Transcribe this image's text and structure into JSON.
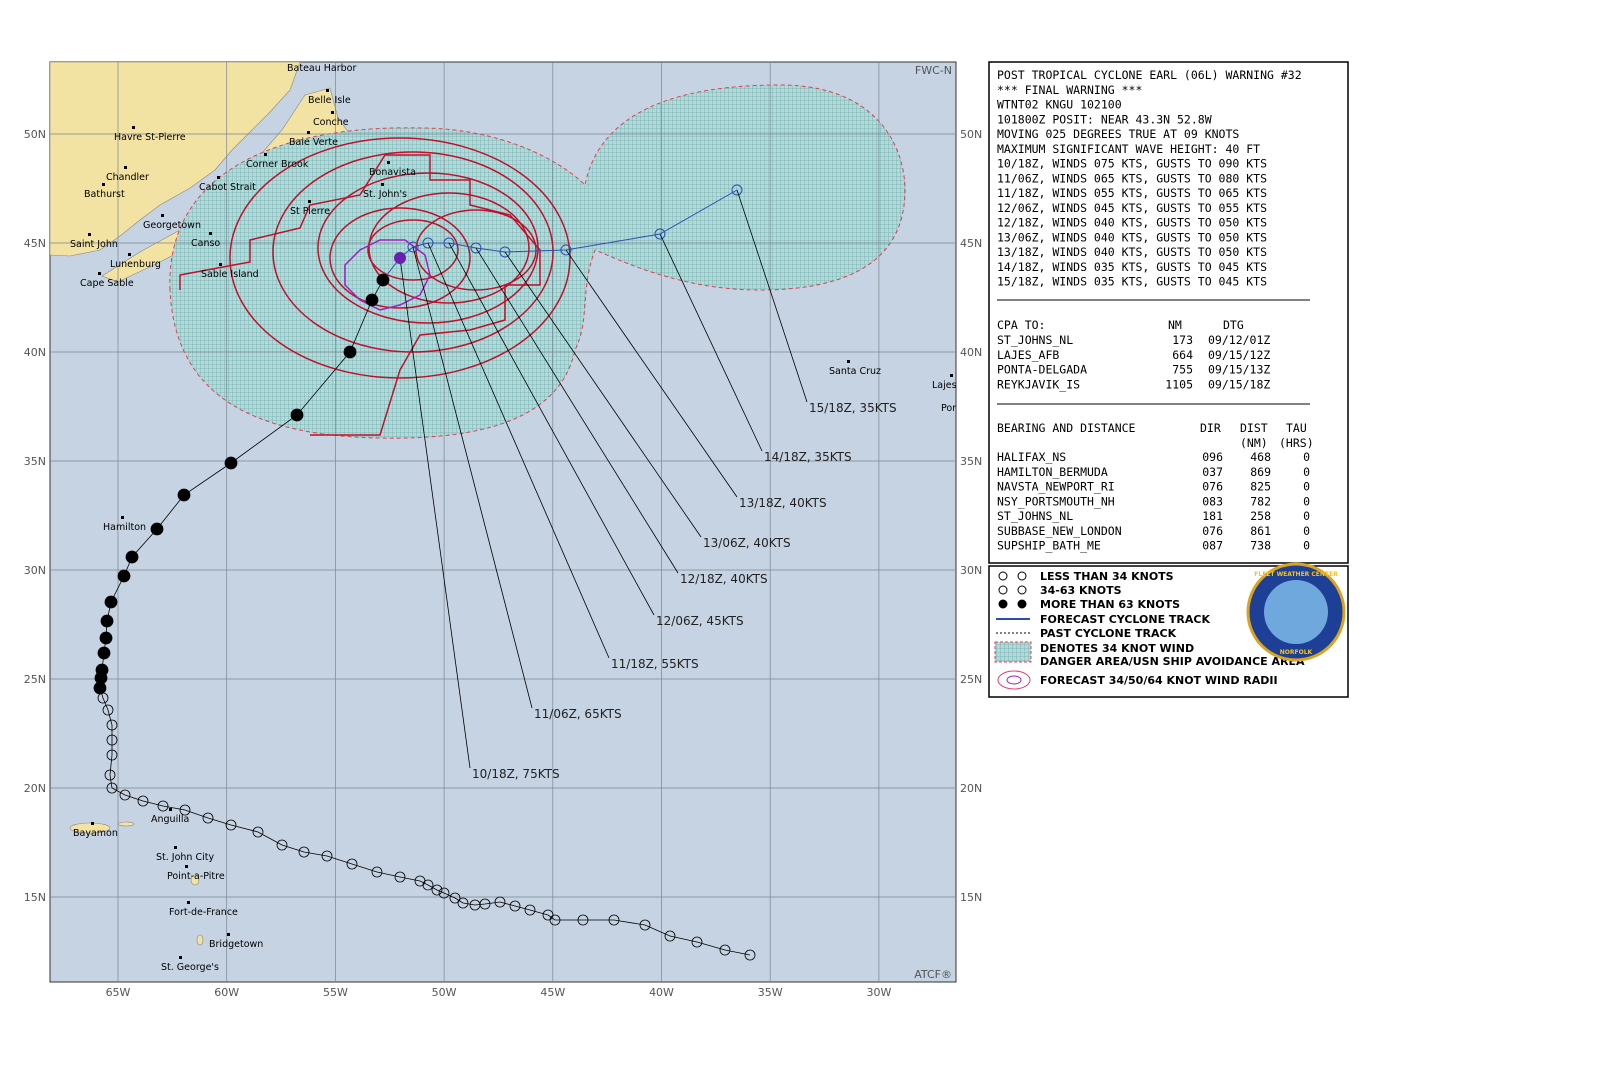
{
  "map": {
    "corner_labels": {
      "top_right": "FWC-N",
      "bottom_right": "ATCF®"
    },
    "lon_labels": [
      "65W",
      "60W",
      "55W",
      "50W",
      "45W",
      "40W",
      "35W",
      "30W"
    ],
    "lat_labels": [
      "50N",
      "45N",
      "40N",
      "35N",
      "30N",
      "25N",
      "20N",
      "15N"
    ],
    "places": [
      "Bateau Harbor",
      "Belle Isle",
      "Conche",
      "Baie Verte",
      "Havre St-Pierre",
      "Corner Brook",
      "Chandler",
      "Bathurst",
      "Cabot Strait",
      "Bonavista",
      "St. John's",
      "St Pierre",
      "Georgetown",
      "Canso",
      "Saint John",
      "Lunenburg",
      "Sable Island",
      "Cape Sable",
      "Santa Cruz",
      "Lajes",
      "Por",
      "Hamilton",
      "Bayamon",
      "Anguilla",
      "St. John City",
      "Point-a-Pitre",
      "Fort-de-France",
      "Bridgetown",
      "St. George's"
    ],
    "forecast_labels": [
      "10/18Z, 75KTS",
      "11/06Z, 65KTS",
      "11/18Z, 55KTS",
      "12/06Z, 45KTS",
      "12/18Z, 40KTS",
      "13/06Z, 40KTS",
      "13/18Z, 40KTS",
      "14/18Z, 35KTS",
      "15/18Z, 35KTS"
    ]
  },
  "warning": {
    "header": [
      "POST TROPICAL CYCLONE EARL (06L) WARNING #32",
      "*** FINAL WARNING ***",
      "WTNT02 KNGU 102100",
      "101800Z POSIT: NEAR 43.3N 52.8W",
      "MOVING 025 DEGREES TRUE AT 09 KNOTS",
      "MAXIMUM SIGNIFICANT WAVE HEIGHT: 40 FT",
      "10/18Z, WINDS 075 KTS, GUSTS TO 090 KTS",
      "11/06Z, WINDS 065 KTS, GUSTS TO 080 KTS",
      "11/18Z, WINDS 055 KTS, GUSTS TO 065 KTS",
      "12/06Z, WINDS 045 KTS, GUSTS TO 055 KTS",
      "12/18Z, WINDS 040 KTS, GUSTS TO 050 KTS",
      "13/06Z, WINDS 040 KTS, GUSTS TO 050 KTS",
      "13/18Z, WINDS 040 KTS, GUSTS TO 050 KTS",
      "14/18Z, WINDS 035 KTS, GUSTS TO 045 KTS",
      "15/18Z, WINDS 035 KTS, GUSTS TO 045 KTS"
    ],
    "cpa": {
      "title": "CPA TO:",
      "columns": [
        "NM",
        "DTG"
      ],
      "rows": [
        [
          "ST_JOHNS_NL",
          "173",
          "09/12/01Z"
        ],
        [
          "LAJES_AFB",
          "664",
          "09/15/12Z"
        ],
        [
          "PONTA-DELGADA",
          "755",
          "09/15/13Z"
        ],
        [
          "REYKJAVIK_IS",
          "1105",
          "09/15/18Z"
        ]
      ]
    },
    "bearing": {
      "title": "BEARING AND DISTANCE",
      "columns": [
        "DIR",
        "DIST",
        "TAU"
      ],
      "units": [
        "(NM)",
        "(HRS)"
      ],
      "rows": [
        [
          "HALIFAX_NS",
          "096",
          "468",
          "0"
        ],
        [
          "HAMILTON_BERMUDA",
          "037",
          "869",
          "0"
        ],
        [
          "NAVSTA_NEWPORT_RI",
          "076",
          "825",
          "0"
        ],
        [
          "NSY_PORTSMOUTH_NH",
          "083",
          "782",
          "0"
        ],
        [
          "ST_JOHNS_NL",
          "181",
          "258",
          "0"
        ],
        [
          "SUBBASE_NEW_LONDON",
          "076",
          "861",
          "0"
        ],
        [
          "SUPSHIP_BATH_ME",
          "087",
          "738",
          "0"
        ]
      ]
    }
  },
  "legend": {
    "entries": [
      "LESS THAN 34 KNOTS",
      "34-63 KNOTS",
      "MORE THAN 63 KNOTS",
      "FORECAST CYCLONE TRACK",
      "PAST CYCLONE TRACK",
      "DENOTES 34 KNOT WIND",
      "DANGER AREA/USN SHIP AVOIDANCE AREA",
      "FORECAST 34/50/64 KNOT WIND RADII"
    ],
    "logo_text": [
      "FLEET WEATHER CENTER",
      "NORFOLK"
    ]
  }
}
